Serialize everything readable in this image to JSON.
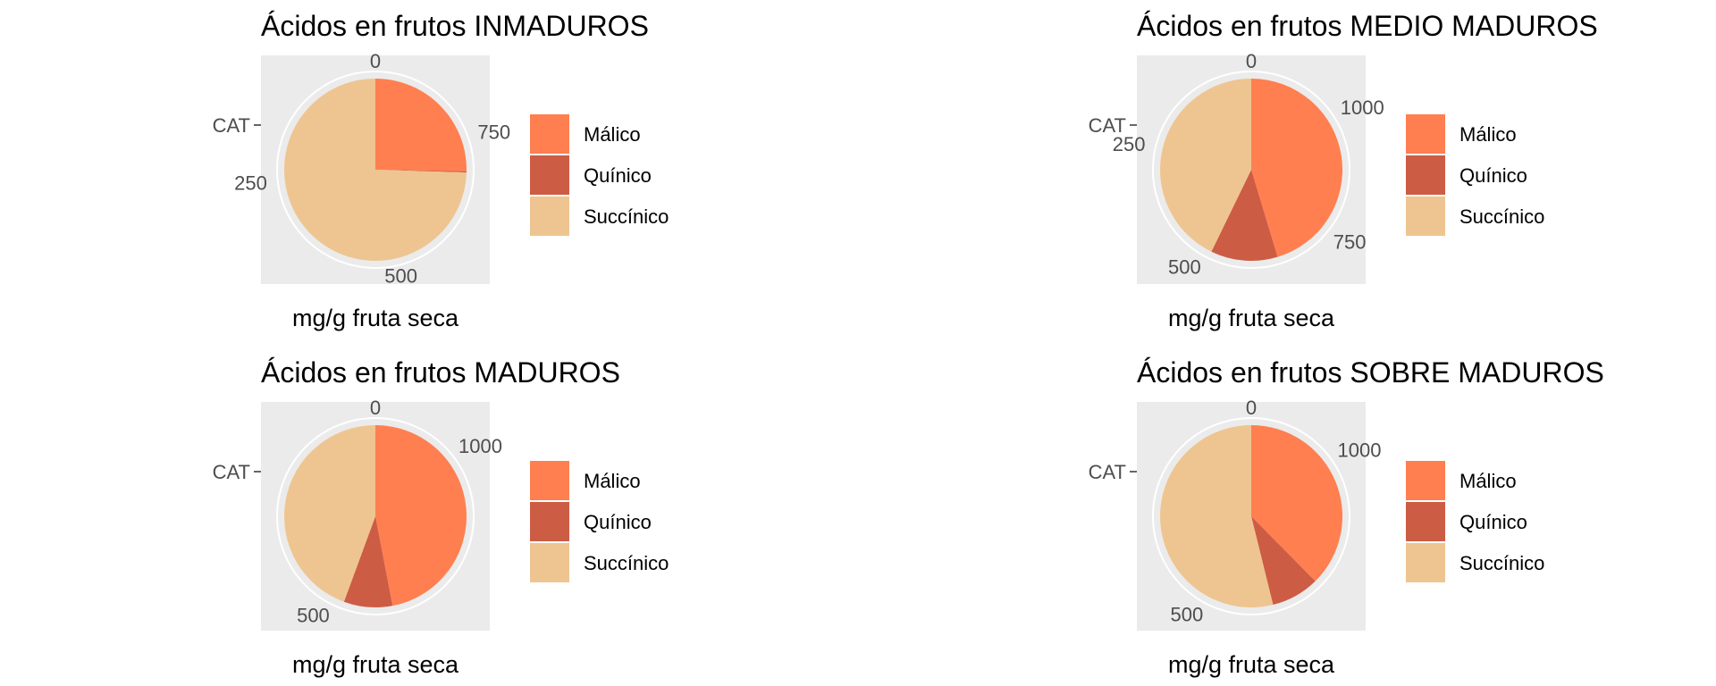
{
  "chart_data": [
    {
      "type": "pie",
      "title": "Ácidos en frutos INMADUROS",
      "ylabel": "CAT",
      "xlabel": "mg/g fruta seca",
      "total": 930,
      "theta_ticks": [
        "0",
        "250",
        "500",
        "750"
      ],
      "categories": [
        "Málico",
        "Quínico",
        "Succínico"
      ],
      "values": [
        235,
        2,
        693
      ]
    },
    {
      "type": "pie",
      "title": "Ácidos en frutos MEDIO MADUROS",
      "ylabel": "CAT",
      "xlabel": "mg/g fruta seca",
      "total": 1180,
      "theta_ticks": [
        "0",
        "250",
        "500",
        "750",
        "1000"
      ],
      "categories": [
        "Málico",
        "Quínico",
        "Succínico"
      ],
      "values": [
        535,
        140,
        505
      ]
    },
    {
      "type": "pie",
      "title": "Ácidos en frutos MADUROS",
      "ylabel": "CAT",
      "xlabel": "mg/g fruta seca",
      "total": 1160,
      "theta_ticks": [
        "0",
        "500",
        "1000"
      ],
      "categories": [
        "Málico",
        "Quínico",
        "Succínico"
      ],
      "values": [
        545,
        100,
        515
      ]
    },
    {
      "type": "pie",
      "title": "Ácidos en frutos SOBRE MADUROS",
      "ylabel": "CAT",
      "xlabel": "mg/g fruta seca",
      "total": 1170,
      "theta_ticks": [
        "0",
        "500",
        "1000"
      ],
      "categories": [
        "Málico",
        "Quínico",
        "Succínico"
      ],
      "values": [
        440,
        100,
        630
      ]
    }
  ],
  "legend": {
    "items": [
      "Málico",
      "Quínico",
      "Succínico"
    ]
  },
  "colors": {
    "Málico": "#FF7F50",
    "Quínico": "#CD5C45",
    "Succínico": "#EEC591",
    "panel_background": "#EBEBEB",
    "grid": "#FFFFFF"
  }
}
